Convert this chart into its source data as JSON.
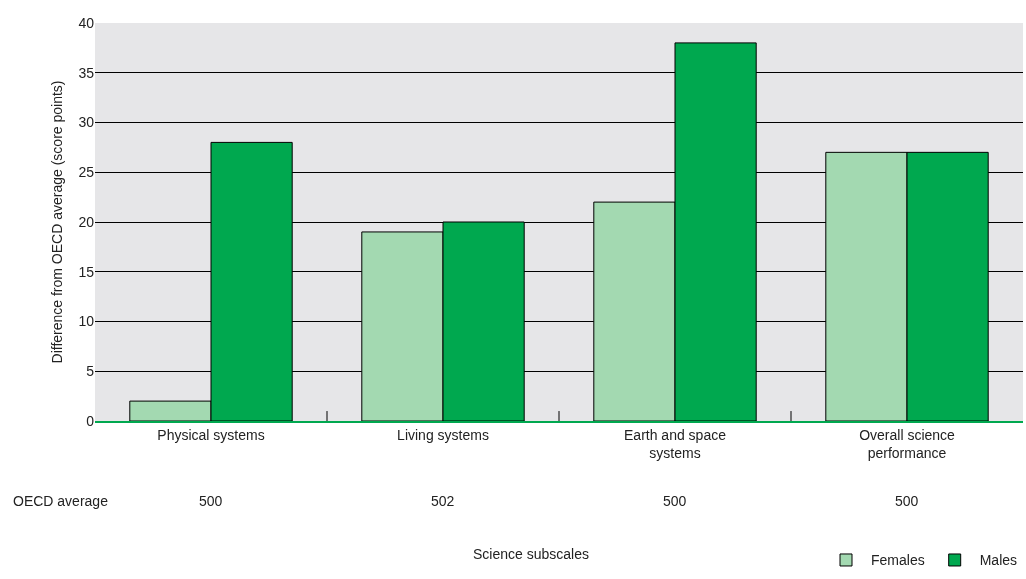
{
  "chart_data": {
    "type": "bar",
    "categories": [
      "Physical systems",
      "Living systems",
      "Earth and space systems",
      "Overall science performance"
    ],
    "series": [
      {
        "name": "Females",
        "color": "#a3d9b1",
        "values": [
          2,
          19,
          22,
          27
        ]
      },
      {
        "name": "Males",
        "color": "#00a84f",
        "values": [
          28,
          20,
          38,
          27
        ]
      }
    ],
    "ylabel": "Difference from OECD average (score points)",
    "ylim": [
      0,
      40
    ],
    "yticks": [
      0,
      5,
      10,
      15,
      20,
      25,
      30,
      35,
      40
    ],
    "grid": "y",
    "legend": "bottom right",
    "annotations": [
      "OECD average",
      "500",
      "502",
      "500",
      "500",
      "Science subscales"
    ]
  }
}
